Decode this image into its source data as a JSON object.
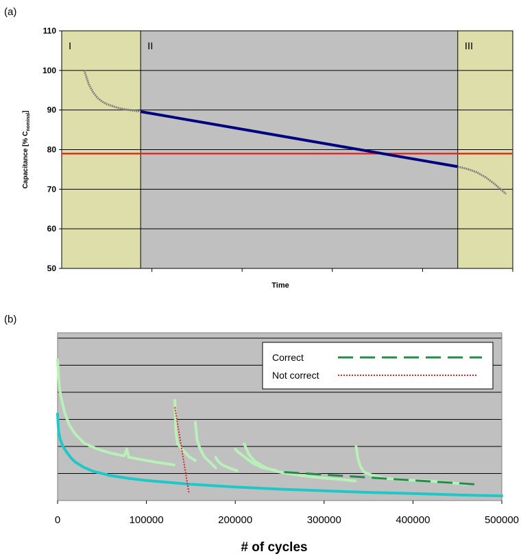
{
  "panels": {
    "a": "(a)",
    "b": "(b)"
  },
  "chart_data": [
    {
      "type": "line",
      "panel": "(a)",
      "xlabel": "Time",
      "ylabel": "Capacitance [% C",
      "ylabel_sub": "nominal",
      "ylabel_end": "]",
      "ylim": [
        50,
        110
      ],
      "yticks": [
        "50",
        "60",
        "70",
        "80",
        "90",
        "100",
        "110"
      ],
      "xlim": [
        0,
        100
      ],
      "grid": true,
      "regions": [
        {
          "label": "I",
          "x": [
            0,
            17.5
          ],
          "color": "#dedeaa"
        },
        {
          "label": "II",
          "x": [
            17.5,
            87.8
          ],
          "color": "#c0c0c0"
        },
        {
          "label": "III",
          "x": [
            87.8,
            100
          ],
          "color": "#dedeaa"
        }
      ],
      "threshold": {
        "y": 79,
        "color": "#ff1a1a"
      },
      "series": [
        {
          "color": "#808080",
          "x": [
            5,
            6,
            7,
            8,
            9,
            10,
            11,
            12,
            13,
            14,
            15,
            16,
            17.5
          ],
          "y": [
            100,
            96.5,
            94.4,
            93.0,
            92.1,
            91.5,
            91.1,
            90.7,
            90.4,
            90.2,
            90.0,
            89.85,
            89.6
          ]
        },
        {
          "color": "#00007f",
          "x": [
            17.5,
            87.8
          ],
          "y": [
            89.6,
            75.7
          ]
        },
        {
          "color": "#808080",
          "x": [
            87.8,
            90,
            92,
            94,
            96,
            97.5,
            98.5
          ],
          "y": [
            75.7,
            75.1,
            74.3,
            73.0,
            71.3,
            69.8,
            68.8
          ]
        }
      ]
    },
    {
      "type": "line",
      "panel": "(b)",
      "xlabel": "# of cycles",
      "xlim": [
        0,
        500000
      ],
      "xticks": [
        "0",
        "100000",
        "200000",
        "300000",
        "400000",
        "500000"
      ],
      "ylim": [
        0,
        6.2
      ],
      "grid": true,
      "legend": {
        "position": "top-right",
        "entries": [
          "Correct",
          "Not correct"
        ]
      },
      "series": [
        {
          "color": "#1fc8c8",
          "x": [
            0,
            1000,
            3000,
            6000,
            10000,
            15000,
            20000,
            30000,
            40000,
            60000,
            80000,
            100000,
            150000,
            200000,
            250000,
            300000,
            350000,
            400000,
            450000,
            500000
          ],
          "y": [
            3.2,
            2.6,
            2.25,
            2.0,
            1.8,
            1.58,
            1.42,
            1.22,
            1.08,
            0.92,
            0.82,
            0.74,
            0.6,
            0.5,
            0.42,
            0.36,
            0.3,
            0.26,
            0.21,
            0.17
          ]
        },
        {
          "color": "#b8f0b8",
          "x": [
            0,
            2000,
            4000,
            8000,
            13000,
            20000,
            30000,
            45000,
            60000,
            75000,
            78000,
            80000,
            100000,
            110000,
            131000
          ],
          "y": [
            5.2,
            4.2,
            3.8,
            3.25,
            2.8,
            2.45,
            2.12,
            1.9,
            1.75,
            1.65,
            1.9,
            1.6,
            1.48,
            1.42,
            1.32
          ]
        },
        {
          "color": "#b8f0b8",
          "x": [
            132000,
            133000,
            135000,
            140000,
            148000,
            155000
          ],
          "y": [
            3.7,
            2.6,
            2.1,
            1.9,
            1.62,
            1.48
          ]
        },
        {
          "color": "#b8f0b8",
          "x": [
            155000,
            157000,
            160000,
            165000,
            175000,
            178000
          ],
          "y": [
            2.9,
            2.25,
            1.95,
            1.62,
            1.3,
            1.21
          ]
        },
        {
          "color": "#b8f0b8",
          "x": [
            178000,
            180000,
            185000,
            195000,
            202000
          ],
          "y": [
            1.6,
            1.48,
            1.32,
            1.18,
            1.1
          ]
        },
        {
          "color": "#b8f0b8",
          "x": [
            200000,
            203000,
            210000,
            220000,
            230000,
            245000
          ],
          "y": [
            1.9,
            1.8,
            1.62,
            1.38,
            1.22,
            1.12
          ]
        },
        {
          "color": "#b8f0b8",
          "x": [
            210000,
            215000,
            222000,
            235000,
            250000,
            260000,
            275000,
            290000,
            310000,
            325000,
            335000
          ],
          "y": [
            2.1,
            1.72,
            1.45,
            1.2,
            1.05,
            1.0,
            0.92,
            0.86,
            0.8,
            0.76,
            0.72
          ]
        },
        {
          "color": "#b8f0b8",
          "x": [
            336000,
            338000,
            341000,
            345000,
            355000,
            370000,
            390000,
            400000,
            430000,
            460000
          ],
          "y": [
            2.0,
            1.55,
            1.25,
            1.05,
            0.92,
            0.82,
            0.76,
            0.75,
            0.7,
            0.6
          ]
        },
        {
          "name": "Correct",
          "color": "#1f8c4a",
          "dash": "long",
          "x": [
            255000,
            470000
          ],
          "y": [
            1.05,
            0.6
          ]
        },
        {
          "name": "Not correct",
          "color": "#dd2222",
          "dash": "dotted",
          "x": [
            132000,
            148000
          ],
          "y": [
            3.45,
            0.25
          ]
        }
      ]
    }
  ]
}
